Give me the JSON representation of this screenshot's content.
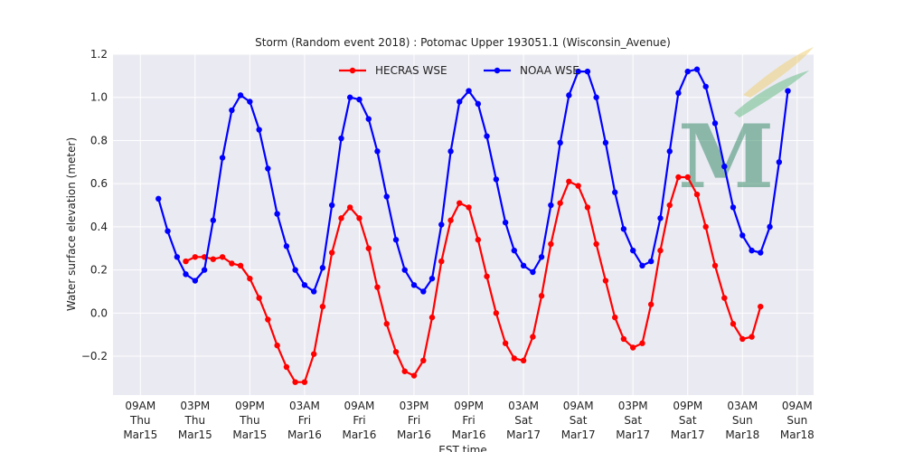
{
  "chart_data": {
    "type": "line",
    "title": "Storm (Random event 2018) : Potomac Upper 193051.1 (Wisconsin_Avenue)",
    "xlabel": "EST time",
    "ylabel": "Water surface elevation (meter)",
    "ylim": [
      -0.38,
      1.2
    ],
    "xlim": [
      -0.5,
      12.3
    ],
    "grid": true,
    "legend_placement": "top-center",
    "y_ticks": [
      "−0.2",
      "0.0",
      "0.2",
      "0.4",
      "0.6",
      "0.8",
      "1.0",
      "1.2"
    ],
    "y_tick_values": [
      -0.2,
      0.0,
      0.2,
      0.4,
      0.6,
      0.8,
      1.0,
      1.2
    ],
    "x_ticks": [
      {
        "value": 0,
        "lines": [
          "09AM",
          "Thu",
          "Mar15"
        ]
      },
      {
        "value": 1,
        "lines": [
          "03PM",
          "Thu",
          "Mar15"
        ]
      },
      {
        "value": 2,
        "lines": [
          "09PM",
          "Thu",
          "Mar15"
        ]
      },
      {
        "value": 3,
        "lines": [
          "03AM",
          "Fri",
          "Mar16"
        ]
      },
      {
        "value": 4,
        "lines": [
          "09AM",
          "Fri",
          "Mar16"
        ]
      },
      {
        "value": 5,
        "lines": [
          "03PM",
          "Fri",
          "Mar16"
        ]
      },
      {
        "value": 6,
        "lines": [
          "09PM",
          "Fri",
          "Mar16"
        ]
      },
      {
        "value": 7,
        "lines": [
          "03AM",
          "Sat",
          "Mar17"
        ]
      },
      {
        "value": 8,
        "lines": [
          "09AM",
          "Sat",
          "Mar17"
        ]
      },
      {
        "value": 9,
        "lines": [
          "03PM",
          "Sat",
          "Mar17"
        ]
      },
      {
        "value": 10,
        "lines": [
          "09PM",
          "Sat",
          "Mar17"
        ]
      },
      {
        "value": 11,
        "lines": [
          "03AM",
          "Sun",
          "Mar18"
        ]
      },
      {
        "value": 12,
        "lines": [
          "09AM",
          "Sun",
          "Mar18"
        ]
      }
    ],
    "series": [
      {
        "name": "HECRAS WSE",
        "color": "#ff0000",
        "x": [
          0.83,
          1.0,
          1.17,
          1.33,
          1.5,
          1.67,
          1.83,
          2.0,
          2.17,
          2.33,
          2.5,
          2.67,
          2.83,
          3.0,
          3.17,
          3.33,
          3.5,
          3.67,
          3.83,
          4.0,
          4.17,
          4.33,
          4.5,
          4.67,
          4.83,
          5.0,
          5.17,
          5.33,
          5.5,
          5.67,
          5.83,
          6.0,
          6.17,
          6.33,
          6.5,
          6.67,
          6.83,
          7.0,
          7.17,
          7.33,
          7.5,
          7.67,
          7.83,
          8.0,
          8.17,
          8.33,
          8.5,
          8.67,
          8.83,
          9.0,
          9.17,
          9.33,
          9.5,
          9.67,
          9.83,
          10.0,
          10.17,
          10.33,
          10.5,
          10.67,
          10.83,
          11.0,
          11.17,
          11.33
        ],
        "y": [
          0.24,
          0.26,
          0.26,
          0.25,
          0.26,
          0.23,
          0.22,
          0.16,
          0.07,
          -0.03,
          -0.15,
          -0.25,
          -0.32,
          -0.32,
          -0.19,
          0.03,
          0.28,
          0.44,
          0.49,
          0.44,
          0.3,
          0.12,
          -0.05,
          -0.18,
          -0.27,
          -0.29,
          -0.22,
          -0.02,
          0.24,
          0.43,
          0.51,
          0.49,
          0.34,
          0.17,
          0.0,
          -0.14,
          -0.21,
          -0.22,
          -0.11,
          0.08,
          0.32,
          0.51,
          0.61,
          0.59,
          0.49,
          0.32,
          0.15,
          -0.02,
          -0.12,
          -0.16,
          -0.14,
          0.04,
          0.29,
          0.5,
          0.63,
          0.63,
          0.55,
          0.4,
          0.22,
          0.07,
          -0.05,
          -0.12,
          -0.11,
          0.03
        ]
      },
      {
        "name": "NOAA WSE",
        "color": "#0000ff",
        "x": [
          0.33,
          0.5,
          0.67,
          0.83,
          1.0,
          1.17,
          1.33,
          1.5,
          1.67,
          1.83,
          2.0,
          2.17,
          2.33,
          2.5,
          2.67,
          2.83,
          3.0,
          3.17,
          3.33,
          3.5,
          3.67,
          3.83,
          4.0,
          4.17,
          4.33,
          4.5,
          4.67,
          4.83,
          5.0,
          5.17,
          5.33,
          5.5,
          5.67,
          5.83,
          6.0,
          6.17,
          6.33,
          6.5,
          6.67,
          6.83,
          7.0,
          7.17,
          7.33,
          7.5,
          7.67,
          7.83,
          8.0,
          8.17,
          8.33,
          8.5,
          8.67,
          8.83,
          9.0,
          9.17,
          9.33,
          9.5,
          9.67,
          9.83,
          10.0,
          10.17,
          10.33,
          10.5,
          10.67,
          10.83,
          11.0,
          11.17,
          11.33,
          11.5,
          11.67,
          11.83
        ],
        "y": [
          0.53,
          0.38,
          0.26,
          0.18,
          0.15,
          0.2,
          0.43,
          0.72,
          0.94,
          1.01,
          0.98,
          0.85,
          0.67,
          0.46,
          0.31,
          0.2,
          0.13,
          0.1,
          0.21,
          0.5,
          0.81,
          1.0,
          0.99,
          0.9,
          0.75,
          0.54,
          0.34,
          0.2,
          0.13,
          0.1,
          0.16,
          0.41,
          0.75,
          0.98,
          1.03,
          0.97,
          0.82,
          0.62,
          0.42,
          0.29,
          0.22,
          0.19,
          0.26,
          0.5,
          0.79,
          1.01,
          1.12,
          1.12,
          1.0,
          0.79,
          0.56,
          0.39,
          0.29,
          0.22,
          0.24,
          0.44,
          0.75,
          1.02,
          1.12,
          1.13,
          1.05,
          0.88,
          0.68,
          0.49,
          0.36,
          0.29,
          0.28,
          0.4,
          0.7,
          1.03
        ]
      }
    ]
  }
}
